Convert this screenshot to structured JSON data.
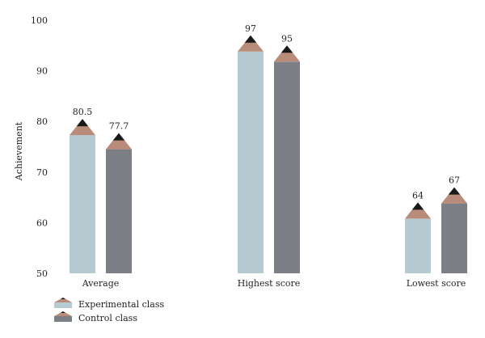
{
  "chart_data": {
    "type": "bar",
    "style": "pencil-bar",
    "categories": [
      "Average",
      "Highest score",
      "Lowest score"
    ],
    "series": [
      {
        "name": "Experimental class",
        "values": [
          80.5,
          97,
          64
        ],
        "color": "#b6cad2"
      },
      {
        "name": "Control class",
        "values": [
          77.7,
          95,
          67
        ],
        "color": "#7d7f87"
      }
    ],
    "tip_color": "#b98b79",
    "point_color": "#1a1a1a",
    "data_labels": [
      [
        "80.5",
        "97",
        "64"
      ],
      [
        "77.7",
        "95",
        "67"
      ]
    ],
    "title": "",
    "xlabel": "",
    "ylabel": "Achievement",
    "ylim": [
      50,
      100
    ],
    "yticks": [
      50,
      60,
      70,
      80,
      90,
      100
    ],
    "grid": false,
    "legend_position": "bottom-left"
  }
}
